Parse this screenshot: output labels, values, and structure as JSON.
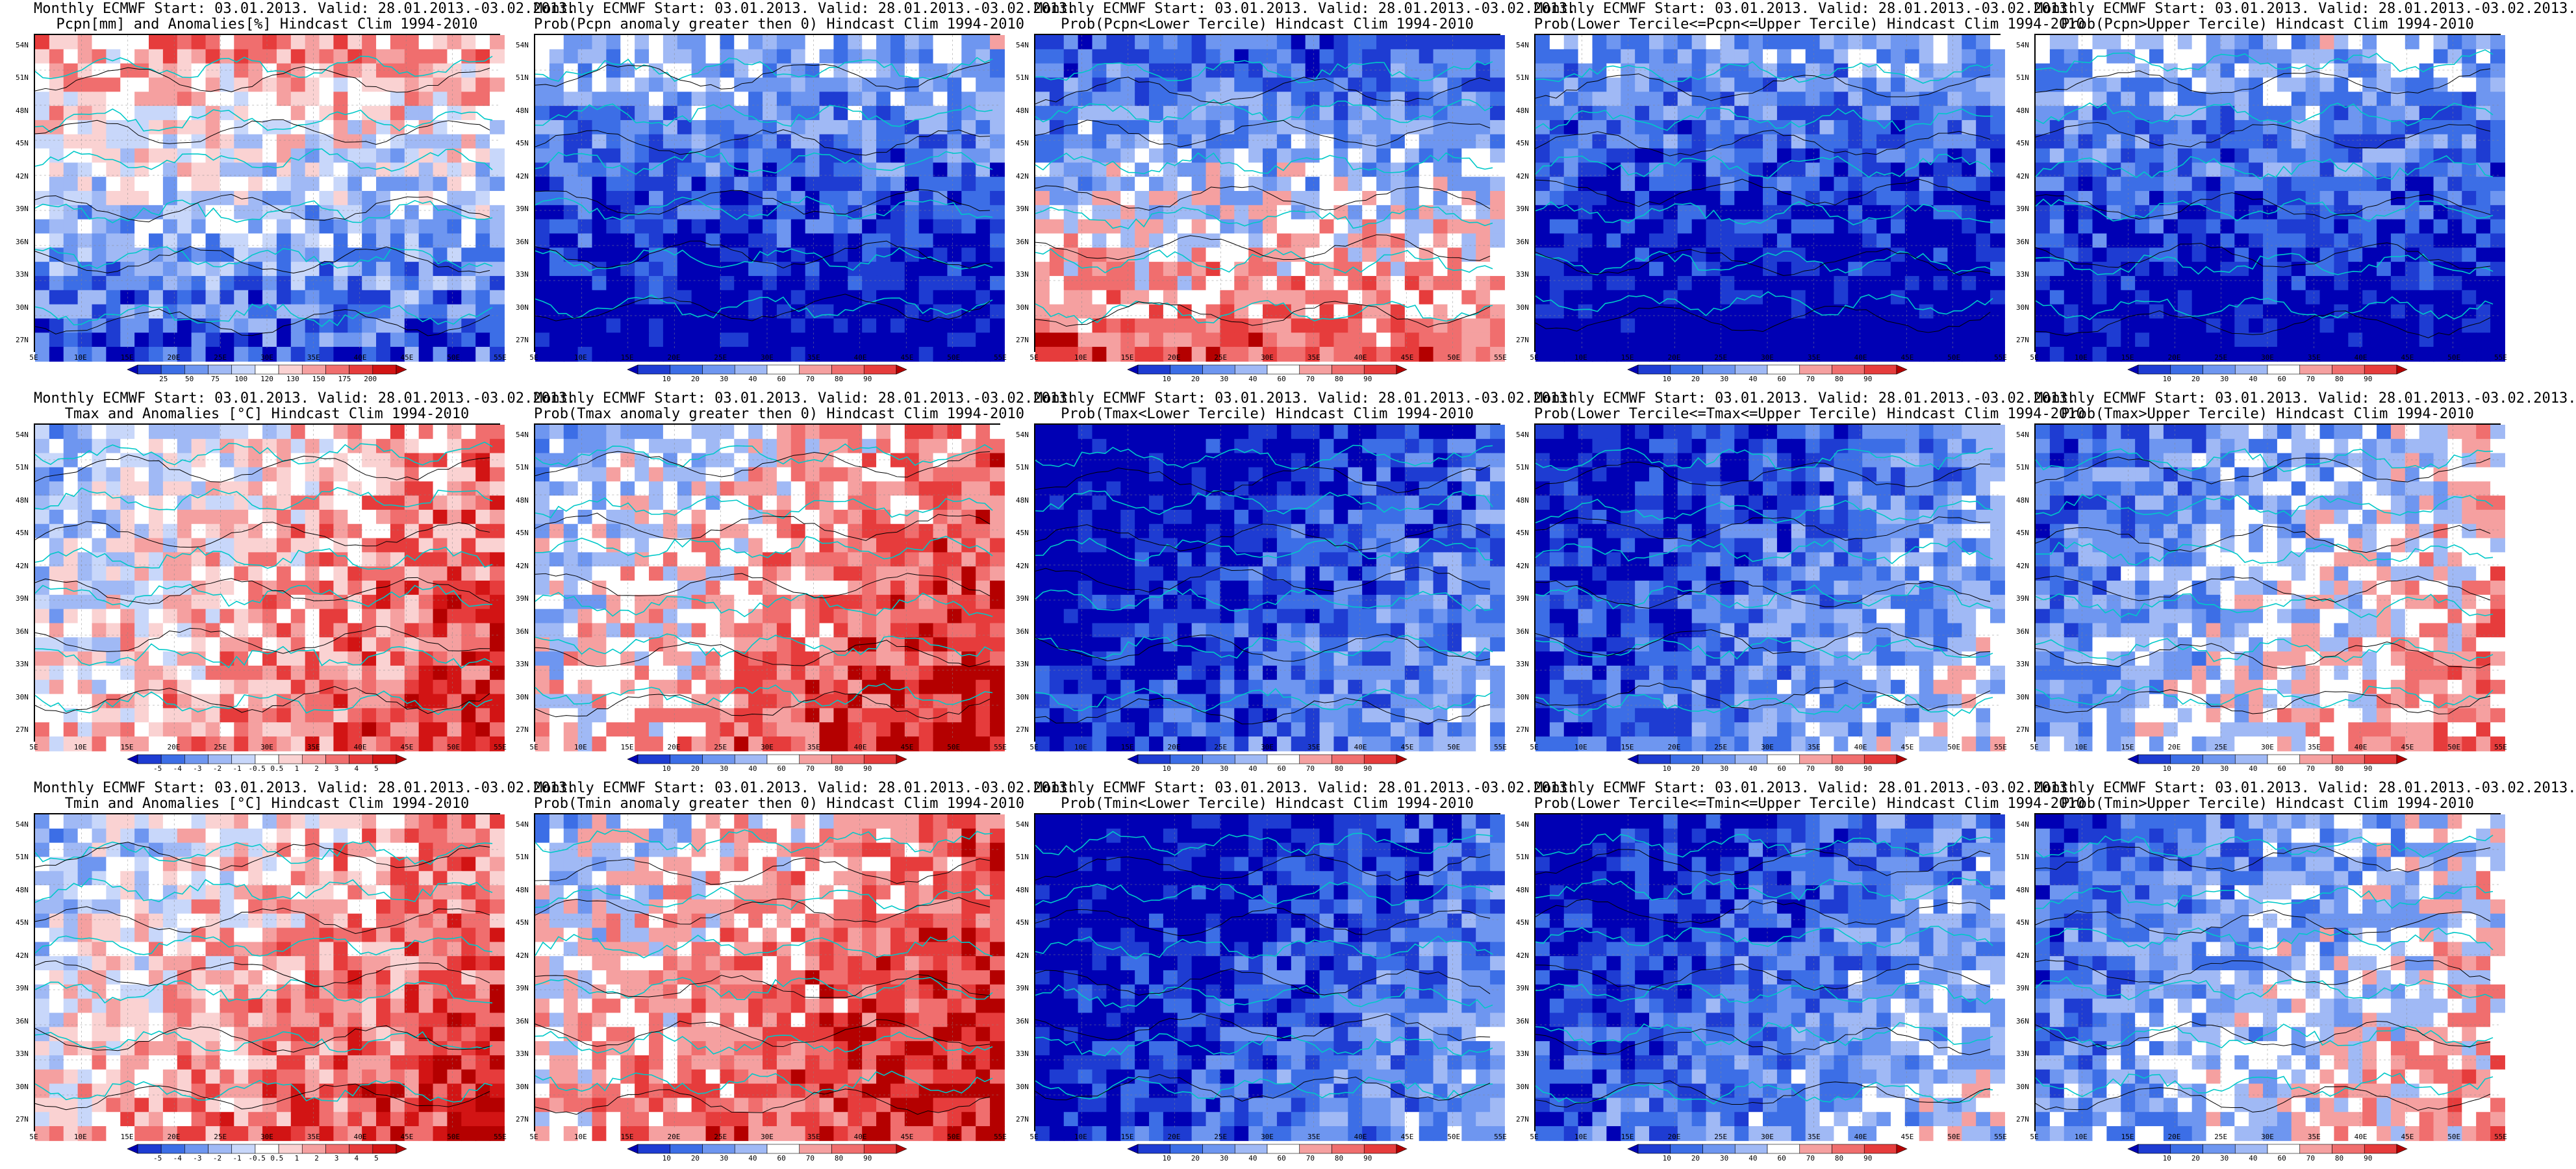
{
  "figure": {
    "lat_ticks": [
      "27N",
      "30N",
      "33N",
      "36N",
      "39N",
      "42N",
      "45N",
      "48N",
      "51N",
      "54N"
    ],
    "lon_ticks": [
      "5E",
      "10E",
      "15E",
      "20E",
      "25E",
      "30E",
      "35E",
      "40E",
      "45E",
      "50E",
      "55E"
    ],
    "palettes": {
      "anomaly_precip": [
        "#0000b4",
        "#1e3cd2",
        "#3c6ee6",
        "#6e96f0",
        "#a0b9f5",
        "#c8d7fa",
        "#ffffff",
        "#fad2d2",
        "#f5a0a0",
        "#f06e6e",
        "#e63c3c",
        "#d21414",
        "#b40000"
      ],
      "anomaly_temp": [
        "#0000b4",
        "#1e3cd2",
        "#3c6ee6",
        "#6e96f0",
        "#a0b9f5",
        "#c8d7fa",
        "#ffffff",
        "#fad2d2",
        "#f5a0a0",
        "#f06e6e",
        "#e63c3c",
        "#d21414",
        "#b40000"
      ],
      "prob": [
        "#0000b4",
        "#1e3cd2",
        "#3c6ee6",
        "#6e96f0",
        "#a0b9f5",
        "#ffffff",
        "#f5a0a0",
        "#f06e6e",
        "#e63c3c",
        "#b40000"
      ]
    },
    "rows": [
      {
        "panels": [
          {
            "title1": "Monthly ECMWF Start: 03.01.2013. Valid: 28.01.2013.-03.02.2013.",
            "title2": "Pcpn[mm] and Anomalies[%] Hindcast Clim 1994-2010",
            "palette": "anomaly_precip",
            "cbar_labels": [
              "25",
              "50",
              "75",
              "100",
              "120",
              "130",
              "150",
              "175",
              "200"
            ],
            "bias": 0.4
          },
          {
            "title1": "Monthly ECMWF Start: 03.01.2013. Valid: 28.01.2013.-03.02.2013.",
            "title2": "Prob(Pcpn anomaly greater then 0) Hindcast Clim 1994-2010",
            "palette": "prob",
            "cbar_labels": [
              "10",
              "20",
              "30",
              "40",
              "60",
              "70",
              "80",
              "90"
            ],
            "bias": 0.2
          },
          {
            "title1": "Monthly ECMWF Start: 03.01.2013. Valid: 28.01.2013.-03.02.2013.",
            "title2": "Prob(Pcpn<Lower Tercile) Hindcast Clim 1994-2010",
            "palette": "prob",
            "cbar_labels": [
              "10",
              "20",
              "30",
              "40",
              "60",
              "70",
              "80",
              "90"
            ],
            "bias": 0.5
          },
          {
            "title1": "Monthly ECMWF Start: 03.01.2013. Valid: 28.01.2013.-03.02.2013.",
            "title2": "Prob(Lower Tercile<=Pcpn<=Upper Tercile) Hindcast Clim 1994-2010",
            "palette": "prob",
            "cbar_labels": [
              "10",
              "20",
              "30",
              "40",
              "60",
              "70",
              "80",
              "90"
            ],
            "bias": 0.15
          },
          {
            "title1": "Monthly ECMWF Start: 03.01.2013. Valid: 28.01.2013.-03.02.2013.",
            "title2": "Prob(Pcpn>Upper Tercile) Hindcast Clim 1994-2010",
            "palette": "prob",
            "cbar_labels": [
              "10",
              "20",
              "30",
              "40",
              "60",
              "70",
              "80",
              "90"
            ],
            "bias": 0.2
          }
        ]
      },
      {
        "panels": [
          {
            "title1": "Monthly ECMWF Start: 03.01.2013. Valid: 28.01.2013.-03.02.2013.",
            "title2": "Tmax and Anomalies [°C] Hindcast Clim 1994-2010",
            "palette": "anomaly_temp",
            "cbar_labels": [
              "-5",
              "-4",
              "-3",
              "-2",
              "-1",
              "-0.5",
              "0.5",
              "1",
              "2",
              "3",
              "4",
              "5"
            ],
            "bias": 0.6
          },
          {
            "title1": "Monthly ECMWF Start: 03.01.2013. Valid: 28.01.2013.-03.02.2013.",
            "title2": "Prob(Tmax anomaly greater then 0) Hindcast Clim 1994-2010",
            "palette": "prob",
            "cbar_labels": [
              "10",
              "20",
              "30",
              "40",
              "60",
              "70",
              "80",
              "90"
            ],
            "bias": 0.65
          },
          {
            "title1": "Monthly ECMWF Start: 03.01.2013. Valid: 28.01.2013.-03.02.2013.",
            "title2": "Prob(Tmax<Lower Tercile) Hindcast Clim 1994-2010",
            "palette": "prob",
            "cbar_labels": [
              "10",
              "20",
              "30",
              "40",
              "60",
              "70",
              "80",
              "90"
            ],
            "bias": 0.15
          },
          {
            "title1": "Monthly ECMWF Start: 03.01.2013. Valid: 28.01.2013.-03.02.2013.",
            "title2": "Prob(Lower Tercile<=Tmax<=Upper Tercile) Hindcast Clim 1994-2010",
            "palette": "prob",
            "cbar_labels": [
              "10",
              "20",
              "30",
              "40",
              "60",
              "70",
              "80",
              "90"
            ],
            "bias": 0.25
          },
          {
            "title1": "Monthly ECMWF Start: 03.01.2013. Valid: 28.01.2013.-03.02.2013.",
            "title2": "Prob(Tmax>Upper Tercile) Hindcast Clim 1994-2010",
            "palette": "prob",
            "cbar_labels": [
              "10",
              "20",
              "30",
              "40",
              "60",
              "70",
              "80",
              "90"
            ],
            "bias": 0.45
          }
        ]
      },
      {
        "panels": [
          {
            "title1": "Monthly ECMWF Start: 03.01.2013. Valid: 28.01.2013.-03.02.2013.",
            "title2": "Tmin and Anomalies [°C] Hindcast Clim 1994-2010",
            "palette": "anomaly_temp",
            "cbar_labels": [
              "-5",
              "-4",
              "-3",
              "-2",
              "-1",
              "-0.5",
              "0.5",
              "1",
              "2",
              "3",
              "4",
              "5"
            ],
            "bias": 0.62
          },
          {
            "title1": "Monthly ECMWF Start: 03.01.2013. Valid: 28.01.2013.-03.02.2013.",
            "title2": "Prob(Tmin anomaly greater then 0) Hindcast Clim 1994-2010",
            "palette": "prob",
            "cbar_labels": [
              "10",
              "20",
              "30",
              "40",
              "60",
              "70",
              "80",
              "90"
            ],
            "bias": 0.68
          },
          {
            "title1": "Monthly ECMWF Start: 03.01.2013. Valid: 28.01.2013.-03.02.2013.",
            "title2": "Prob(Tmin<Lower Tercile) Hindcast Clim 1994-2010",
            "palette": "prob",
            "cbar_labels": [
              "10",
              "20",
              "30",
              "40",
              "60",
              "70",
              "80",
              "90"
            ],
            "bias": 0.15
          },
          {
            "title1": "Monthly ECMWF Start: 03.01.2013. Valid: 28.01.2013.-03.02.2013.",
            "title2": "Prob(Lower Tercile<=Tmin<=Upper Tercile) Hindcast Clim 1994-2010",
            "palette": "prob",
            "cbar_labels": [
              "10",
              "20",
              "30",
              "40",
              "60",
              "70",
              "80",
              "90"
            ],
            "bias": 0.25
          },
          {
            "title1": "Monthly ECMWF Start: 03.01.2013. Valid: 28.01.2013.-03.02.2013.",
            "title2": "Prob(Tmin>Upper Tercile) Hindcast Clim 1994-2010",
            "palette": "prob",
            "cbar_labels": [
              "10",
              "20",
              "30",
              "40",
              "60",
              "70",
              "80",
              "90"
            ],
            "bias": 0.42
          }
        ]
      }
    ]
  }
}
